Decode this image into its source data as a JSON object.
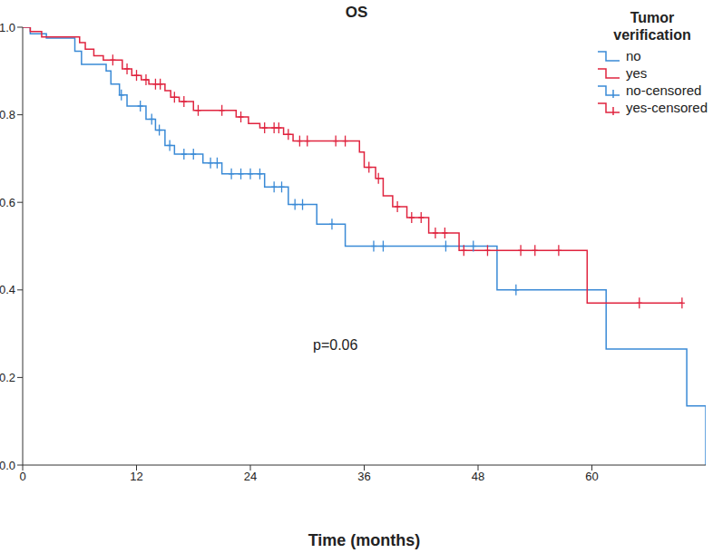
{
  "chart_data": {
    "type": "line",
    "title": "OS",
    "x_label": "Time (months)",
    "legend_title": "Tumor verification",
    "legend": "top-right",
    "annotation": "p=0.06",
    "grid": false,
    "xlim": [
      0,
      72
    ],
    "xticks": [
      0,
      12,
      24,
      36,
      48,
      60
    ],
    "ylim": [
      0,
      1
    ],
    "yticks": [
      {
        "value": 0,
        "label": "0.0"
      },
      0.2,
      0.4,
      0.6,
      0.8,
      {
        "value": 1,
        "label": "1.0"
      }
    ],
    "series": [
      {
        "name": "no",
        "color": "#3a8ad6",
        "type": "line",
        "line_style": "step",
        "x": [
          0,
          0.8,
          2.5,
          5.5,
          6.2,
          8.8,
          9.3,
          10.2,
          11,
          13,
          14,
          15,
          16,
          19,
          21,
          25.5,
          28,
          31,
          34,
          50,
          61.5,
          70,
          72
        ],
        "values": [
          1.0,
          0.985,
          0.975,
          0.945,
          0.915,
          0.9,
          0.87,
          0.845,
          0.82,
          0.79,
          0.765,
          0.73,
          0.71,
          0.69,
          0.665,
          0.635,
          0.595,
          0.55,
          0.5,
          0.4,
          0.265,
          0.135,
          0
        ]
      },
      {
        "name": "yes",
        "color": "#e0243f",
        "type": "line",
        "line_style": "step",
        "x": [
          0,
          0.8,
          2,
          6,
          6.6,
          7.5,
          8.5,
          10.5,
          11.5,
          12.5,
          13.3,
          15,
          15.6,
          16.5,
          18,
          22.5,
          23.8,
          25,
          27.5,
          28.5,
          35.5,
          36,
          37.2,
          38,
          39,
          40.5,
          42.8,
          46,
          59.5,
          69.5
        ],
        "values": [
          1.0,
          0.99,
          0.978,
          0.965,
          0.95,
          0.935,
          0.925,
          0.905,
          0.89,
          0.88,
          0.87,
          0.855,
          0.84,
          0.83,
          0.81,
          0.795,
          0.78,
          0.77,
          0.755,
          0.74,
          0.715,
          0.68,
          0.655,
          0.615,
          0.59,
          0.565,
          0.53,
          0.49,
          0.37,
          0.37
        ]
      },
      {
        "name": "no-censored",
        "color": "#3a8ad6",
        "type": "scatter",
        "marker": "cross",
        "x": [
          10.4,
          12.4,
          13.6,
          14.4,
          15.5,
          17,
          18,
          19.8,
          20.5,
          22,
          23,
          24,
          25,
          26.5,
          27.3,
          28.7,
          29.5,
          32.6,
          37,
          38,
          44.6,
          47.5,
          52
        ],
        "values": [
          0.845,
          0.82,
          0.79,
          0.765,
          0.73,
          0.71,
          0.71,
          0.69,
          0.69,
          0.665,
          0.665,
          0.665,
          0.665,
          0.635,
          0.635,
          0.595,
          0.595,
          0.55,
          0.5,
          0.5,
          0.5,
          0.5,
          0.4
        ]
      },
      {
        "name": "yes-censored",
        "color": "#e0243f",
        "type": "scatter",
        "marker": "cross",
        "x": [
          9.5,
          11,
          12,
          13,
          14,
          14.5,
          16,
          17,
          18.5,
          21,
          23,
          25.5,
          26.5,
          27,
          28,
          29.2,
          30,
          33,
          34,
          36.5,
          37.5,
          39.5,
          41,
          42,
          43.5,
          44.5,
          46.5,
          49,
          52.5,
          54,
          56.5,
          65,
          69.5
        ],
        "values": [
          0.925,
          0.905,
          0.89,
          0.88,
          0.87,
          0.87,
          0.84,
          0.83,
          0.81,
          0.81,
          0.795,
          0.77,
          0.77,
          0.77,
          0.755,
          0.74,
          0.74,
          0.74,
          0.74,
          0.68,
          0.655,
          0.59,
          0.565,
          0.565,
          0.53,
          0.53,
          0.49,
          0.49,
          0.49,
          0.49,
          0.49,
          0.37,
          0.37
        ]
      }
    ]
  }
}
